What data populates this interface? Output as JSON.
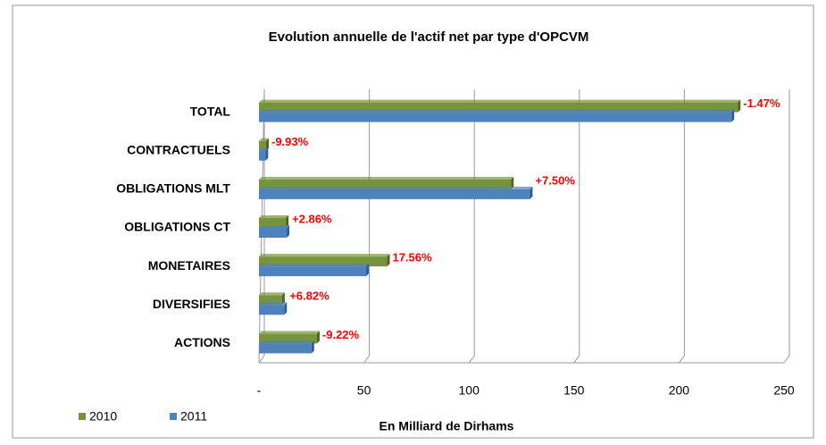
{
  "chart_data": {
    "type": "bar",
    "orientation": "horizontal",
    "title": "Evolution annuelle de l'actif net par type d'OPCVM",
    "x_label": "En Milliard  de Dirhams",
    "categories": [
      "TOTAL",
      "CONTRACTUELS",
      "OBLIGATIONS MLT",
      "OBLIGATIONS CT",
      "MONETAIRES",
      "DIVERSIFIES",
      "ACTIONS"
    ],
    "series": [
      {
        "name": "2010",
        "color": "#77933c",
        "values": [
          228,
          3.4,
          120,
          12.8,
          61,
          11,
          27.6
        ]
      },
      {
        "name": "2011",
        "color": "#4f81bd",
        "values": [
          225,
          3.1,
          129,
          13.2,
          51,
          12,
          25
        ]
      }
    ],
    "annotations": [
      "-1.47%",
      "-9.93%",
      "+7.50%",
      "+2.86%",
      "17.56%",
      "+6.82%",
      "-9.22%"
    ],
    "annotation_color": "#ff0000",
    "xlim": [
      0,
      250
    ],
    "xticks": [
      {
        "value": 0,
        "label": "-"
      },
      50,
      100,
      150,
      200,
      250
    ],
    "grid": true,
    "legend": "bottom-left"
  }
}
